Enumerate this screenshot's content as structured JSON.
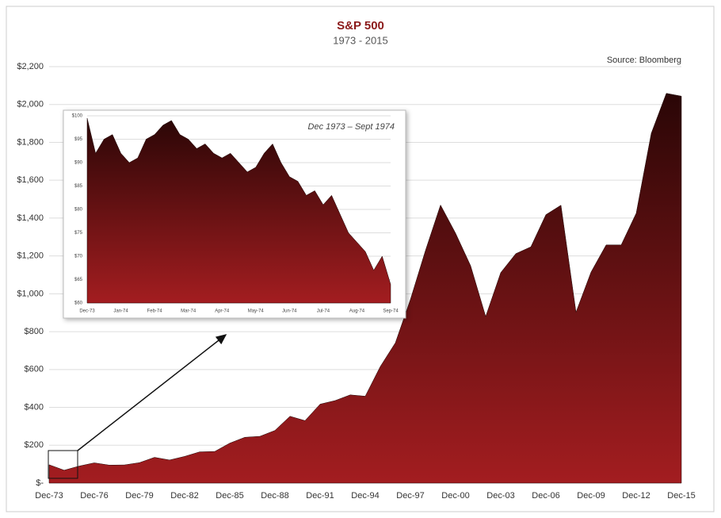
{
  "chart_data": [
    {
      "type": "area",
      "title": "S&P 500",
      "subtitle": "1973 - 2015",
      "source": "Source: Bloomberg",
      "colors": [
        "#2a0606",
        "#a31d20"
      ],
      "grid": true,
      "categories": [
        "Dec-73",
        null,
        null,
        "Dec-76",
        null,
        null,
        "Dec-79",
        null,
        null,
        "Dec-82",
        null,
        null,
        "Dec-85",
        null,
        null,
        "Dec-88",
        null,
        null,
        "Dec-91",
        null,
        null,
        "Dec-94",
        null,
        null,
        "Dec-97",
        null,
        null,
        "Dec-00",
        null,
        null,
        "Dec-03",
        null,
        null,
        "Dec-06",
        null,
        null,
        "Dec-09",
        null,
        null,
        "Dec-12",
        null,
        null,
        "Dec-15"
      ],
      "values": [
        97,
        68,
        90,
        107,
        95,
        96,
        108,
        136,
        122,
        141,
        165,
        167,
        211,
        242,
        247,
        278,
        353,
        330,
        417,
        436,
        466,
        459,
        616,
        741,
        970,
        1229,
        1469,
        1320,
        1148,
        880,
        1112,
        1212,
        1248,
        1418,
        1468,
        903,
        1115,
        1258,
        1258,
        1426,
        1848,
        2059,
        2044
      ],
      "ylim": [
        0,
        2200
      ],
      "yticks": [
        {
          "value": 0,
          "label": "$-"
        },
        {
          "value": 200,
          "label": "$200"
        },
        {
          "value": 400,
          "label": "$400"
        },
        {
          "value": 600,
          "label": "$600"
        },
        {
          "value": 800,
          "label": "$800"
        },
        {
          "value": 1000,
          "label": "$1,000"
        },
        {
          "value": 1200,
          "label": "$1,200"
        },
        {
          "value": 1400,
          "label": "$1,400"
        },
        {
          "value": 1600,
          "label": "$1,600"
        },
        {
          "value": 1800,
          "label": "$1,800"
        },
        {
          "value": 2000,
          "label": "$2,000"
        },
        {
          "value": 2200,
          "label": "$2,200"
        }
      ]
    },
    {
      "type": "area",
      "title": "Dec 1973 – Sept 1974",
      "colors": [
        "#2a0606",
        "#a31d20"
      ],
      "grid": true,
      "categories": [
        "Dec-73",
        null,
        null,
        null,
        "Jan-74",
        null,
        null,
        null,
        "Feb-74",
        null,
        null,
        null,
        "Mar-74",
        null,
        null,
        null,
        "Apr-74",
        null,
        null,
        null,
        "May-74",
        null,
        null,
        null,
        "Jun-74",
        null,
        null,
        null,
        "Jul-74",
        null,
        null,
        null,
        "Aug-74",
        null,
        null,
        null,
        "Sep-74"
      ],
      "values": [
        99.5,
        92,
        95,
        96,
        92,
        90,
        91,
        95,
        96,
        98,
        99,
        96,
        95,
        93,
        94,
        92,
        91,
        92,
        90,
        88,
        89,
        92,
        94,
        90,
        87,
        86,
        83,
        84,
        81,
        83,
        79,
        75,
        73,
        71,
        67,
        70,
        64
      ],
      "ylim": [
        60,
        100
      ],
      "yticks": [
        {
          "value": 60,
          "label": "$60"
        },
        {
          "value": 65,
          "label": "$65"
        },
        {
          "value": 70,
          "label": "$70"
        },
        {
          "value": 75,
          "label": "$75"
        },
        {
          "value": 80,
          "label": "$80"
        },
        {
          "value": 85,
          "label": "$85"
        },
        {
          "value": 90,
          "label": "$90"
        },
        {
          "value": 95,
          "label": "$95"
        },
        {
          "value": 100,
          "label": "$100"
        }
      ]
    }
  ]
}
